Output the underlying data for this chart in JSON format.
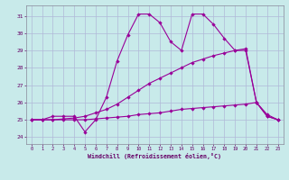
{
  "xlabel": "Windchill (Refroidissement éolien,°C)",
  "background_color": "#c8eaea",
  "grid_color": "#b0b8d8",
  "line_color": "#990099",
  "x_ticks": [
    0,
    1,
    2,
    3,
    4,
    5,
    6,
    7,
    8,
    9,
    10,
    11,
    12,
    13,
    14,
    15,
    16,
    17,
    18,
    19,
    20,
    21,
    22,
    23
  ],
  "y_ticks": [
    24,
    25,
    26,
    27,
    28,
    29,
    30,
    31
  ],
  "xlim": [
    -0.5,
    23.5
  ],
  "ylim": [
    23.6,
    31.6
  ],
  "line1_x": [
    0,
    1,
    2,
    3,
    4,
    5,
    6,
    7,
    8,
    9,
    10,
    11,
    12,
    13,
    14,
    15,
    16,
    17,
    18,
    19,
    20,
    21,
    22,
    23
  ],
  "line1_y": [
    25.0,
    25.0,
    25.2,
    25.2,
    25.2,
    24.3,
    25.0,
    26.3,
    28.4,
    29.9,
    31.1,
    31.1,
    30.6,
    29.5,
    29.0,
    31.1,
    31.1,
    30.5,
    29.7,
    29.0,
    29.1,
    26.0,
    25.2,
    25.0
  ],
  "line2_x": [
    0,
    1,
    2,
    3,
    4,
    5,
    6,
    7,
    8,
    9,
    10,
    11,
    12,
    13,
    14,
    15,
    16,
    17,
    18,
    19,
    20,
    21,
    22,
    23
  ],
  "line2_y": [
    25.0,
    25.0,
    25.0,
    25.0,
    25.0,
    25.0,
    25.05,
    25.1,
    25.15,
    25.2,
    25.3,
    25.35,
    25.4,
    25.5,
    25.6,
    25.65,
    25.7,
    25.75,
    25.8,
    25.85,
    25.9,
    26.0,
    25.3,
    25.0
  ],
  "line3_x": [
    0,
    1,
    2,
    3,
    4,
    5,
    6,
    7,
    8,
    9,
    10,
    11,
    12,
    13,
    14,
    15,
    16,
    17,
    18,
    19,
    20,
    21,
    22,
    23
  ],
  "line3_y": [
    25.0,
    25.0,
    25.0,
    25.05,
    25.1,
    25.2,
    25.4,
    25.6,
    25.9,
    26.3,
    26.7,
    27.1,
    27.4,
    27.7,
    28.0,
    28.3,
    28.5,
    28.7,
    28.85,
    29.0,
    29.0,
    26.0,
    25.2,
    25.0
  ]
}
